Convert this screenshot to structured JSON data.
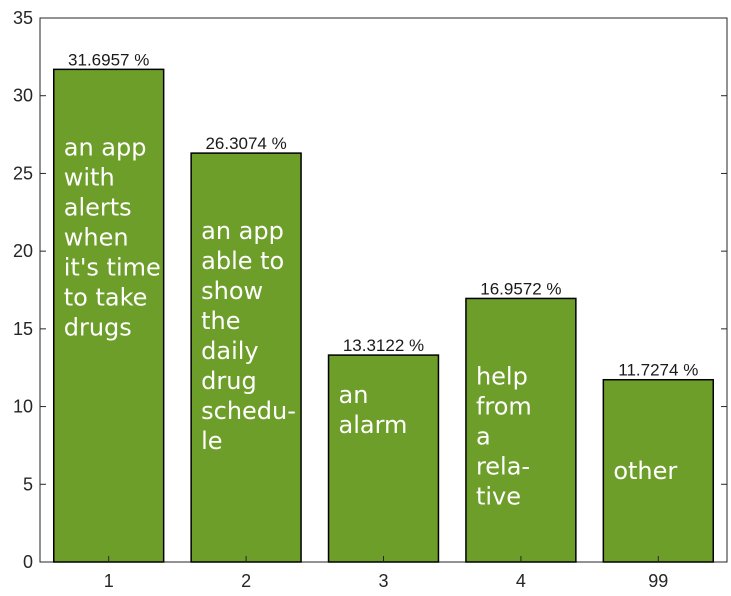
{
  "chart_data": {
    "type": "bar",
    "categories": [
      "1",
      "2",
      "3",
      "4",
      "99"
    ],
    "values": [
      31.6957,
      26.3074,
      13.3122,
      16.9572,
      11.7274
    ],
    "data_labels": [
      "31.6957 %",
      "26.3074 %",
      "13.3122 %",
      "16.9572 %",
      "11.7274 %"
    ],
    "bar_annotations": [
      [
        "an app",
        "with",
        "alerts",
        "when",
        "it's time",
        "to take",
        "drugs"
      ],
      [
        "an app",
        "able to",
        "show",
        "the",
        "daily",
        "drug",
        "schedu-",
        "le"
      ],
      [
        "an",
        "alarm"
      ],
      [
        "help",
        "from",
        "a",
        "rela-",
        "tive"
      ],
      [
        "other"
      ]
    ],
    "yticks": [
      0,
      5,
      10,
      15,
      20,
      25,
      30,
      35
    ],
    "ylim": [
      0,
      35
    ],
    "title": "",
    "xlabel": "",
    "ylabel": "",
    "grid": false,
    "colors": {
      "bar": "#6e9e2a",
      "bar_edge": "#000000",
      "axis": "#262626",
      "annotation": "#ffffff"
    }
  }
}
